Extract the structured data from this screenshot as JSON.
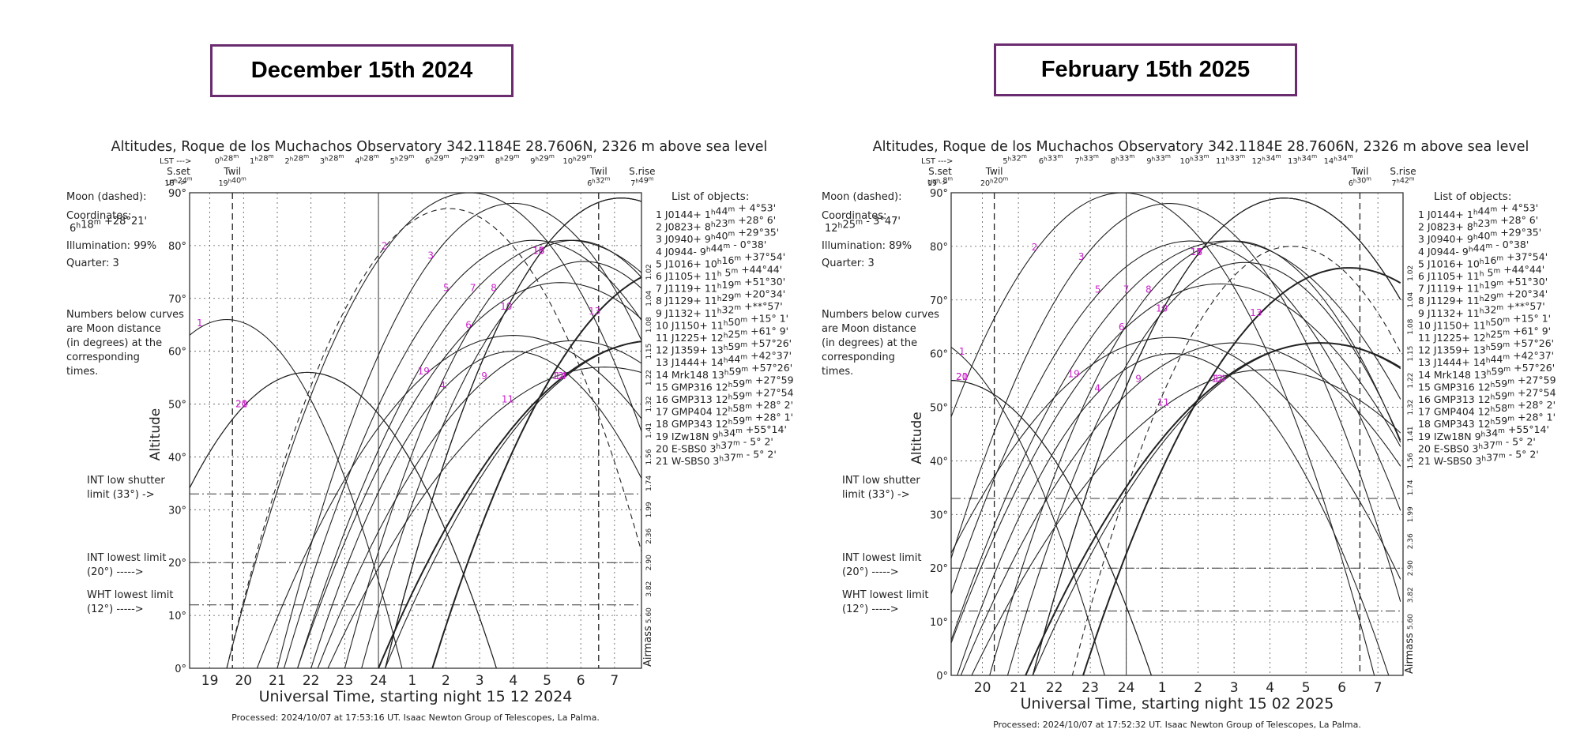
{
  "panels": [
    {
      "date_label": "December 15th 2024",
      "title": "Altitudes, Roque de los Muchachos Observatory 342.1184E  28.7606N, 2326 m above sea level",
      "lst_label": "LST --->",
      "ut_label": "UT ->",
      "lst_ticks": [
        "0h28m",
        "1h28m",
        "2h28m",
        "3h28m",
        "4h28m",
        "5h29m",
        "6h29m",
        "7h29m",
        "8h29m",
        "9h29m",
        "10h29m"
      ],
      "sset": {
        "label": "S.set",
        "time": "18h24m"
      },
      "twil_eve": {
        "label": "Twil",
        "time": "19h40m"
      },
      "twil_morn": {
        "label": "Twil",
        "time": "6h32m"
      },
      "srise": {
        "label": "S.rise",
        "time": "7h49m"
      },
      "moon_dashed": "Moon (dashed):",
      "coordinates_label": "Coordinates:",
      "moon_coords": "6h18m  +28°21'",
      "illumination": "Illumination:  99%",
      "quarter": "Quarter: 3",
      "moon_note": [
        "Numbers below curves",
        "are Moon distance",
        "(in degrees) at the",
        "corresponding",
        "times."
      ],
      "int_shutter": [
        "INT low shutter",
        "limit (33°)  ->"
      ],
      "int_lowest": [
        "INT lowest limit",
        "(20°) ----->"
      ],
      "wht_lowest": [
        "WHT lowest limit",
        "(12°) ----->"
      ],
      "xlabel": "Universal Time, starting night 15 12 2024",
      "ylabel": "Altitude",
      "airmass_label": "Airmass",
      "footer": "Processed: 2024/10/07 at 17:53:16 UT. Isaac  Newton Group of Telescopes, La Palma."
    },
    {
      "date_label": "February 15th 2025",
      "title": "Altitudes, Roque de los Muchachos Observatory 342.1184E  28.7606N, 2326 m above sea level",
      "lst_label": "LST --->",
      "ut_label": "UT ->",
      "lst_ticks": [
        "5h32m",
        "6h33m",
        "7h33m",
        "8h33m",
        "9h33m",
        "10h33m",
        "11h33m",
        "12h34m",
        "13h34m",
        "14h34m"
      ],
      "sset": {
        "label": "S.set",
        "time": "19h 8m"
      },
      "twil_eve": {
        "label": "Twil",
        "time": "20h20m"
      },
      "twil_morn": {
        "label": "Twil",
        "time": "6h30m"
      },
      "srise": {
        "label": "S.rise",
        "time": "7h42m"
      },
      "moon_dashed": "Moon (dashed):",
      "coordinates_label": "Coordinates:",
      "moon_coords": "12h25m  - 3°47'",
      "illumination": "Illumination:  89%",
      "quarter": "Quarter: 3",
      "moon_note": [
        "Numbers below curves",
        "are Moon distance",
        "(in degrees) at the",
        "corresponding",
        "times."
      ],
      "int_shutter": [
        "INT low shutter",
        "limit (33°)  ->"
      ],
      "int_lowest": [
        "INT lowest limit",
        "(20°) ----->"
      ],
      "wht_lowest": [
        "WHT lowest limit",
        "(12°) ----->"
      ],
      "xlabel": "Universal Time, starting night 15 02 2025",
      "ylabel": "Altitude",
      "airmass_label": "Airmass",
      "footer": "Processed: 2024/10/07 at 17:52:32 UT. Isaac  Newton Group of Telescopes, La Palma."
    }
  ],
  "objects_header": "List of objects:",
  "objects": [
    "1 J0144+  1h44m + 4°53'",
    "2 J0823+  8h23m +28° 6'",
    "3 J0940+  9h40m +29°35'",
    "4 J0944-  9h44m - 0°38'",
    "5 J1016+ 10h16m +37°54'",
    "6 J1105+ 11h 5m +44°44'",
    "7 J1119+ 11h19m +51°30'",
    "8 J1129+ 11h29m +20°34'",
    "9 J1132+ 11h32m +**°57'",
    "10 J1150+ 11h50m +15° 1'",
    "11 J1225+ 12h25m +61° 9'",
    "12 J1359+ 13h59m +57°26'",
    "13 J1444+ 14h44m +42°37'",
    "14 Mrk148 13h59m +57°26'",
    "15 GMP316 12h59m +27°59",
    "16 GMP313 12h59m +27°54",
    "17 GMP404 12h58m +28° 2'",
    "18 GMP343 12h59m +28° 1'",
    "19 IZw18N  9h34m +55°14'",
    "20 E-SBS0  3h37m - 5° 2'",
    "21 W-SBS0  3h37m - 5° 2'"
  ],
  "y_ticks": [
    "0°",
    "10°",
    "20°",
    "30°",
    "40°",
    "50°",
    "60°",
    "70°",
    "80°",
    "90°"
  ],
  "airmass_ticks": [
    "5.60",
    "3.82",
    "2.90",
    "2.36",
    "1.99",
    "1.74",
    "1.56",
    "1.41",
    "1.32",
    "1.22",
    "1.15",
    "1.08",
    "1.04",
    "1.02"
  ],
  "colors": {
    "curve": "#222222",
    "moon_dist": "#2222cc",
    "obj_num": "#cc22cc",
    "date_border": "#6b2c6f"
  },
  "chart_data": [
    {
      "type": "line",
      "title": "Altitudes, Roque de los Muchachos Observatory 342.1184E  28.7606N, 2326 m above sea level",
      "xlabel": "Universal Time, starting night 15 12 2024",
      "ylabel": "Altitude",
      "x_ticks": [
        "19",
        "20",
        "21",
        "22",
        "23",
        "24",
        "1",
        "2",
        "3",
        "4",
        "5",
        "6",
        "7"
      ],
      "xlim": [
        18.4,
        31.8
      ],
      "ylim": [
        0,
        90
      ],
      "y_unit": "deg",
      "limits": [
        {
          "name": "INT low shutter",
          "value": 33
        },
        {
          "name": "INT lowest",
          "value": 20
        },
        {
          "name": "WHT lowest",
          "value": 12
        }
      ],
      "markers": {
        "sset": 18.4,
        "twil_eve": 19.67,
        "twil_morn": 30.53,
        "srise": 31.82
      },
      "moon": {
        "name": "Moon",
        "rise": 19.5,
        "peak_time": 26.1,
        "peak_alt": 87
      },
      "series": [
        {
          "name": "1",
          "peak_time": 19.5,
          "peak_alt": 66,
          "hw": 5.2
        },
        {
          "name": "2",
          "peak_time": 26.7,
          "peak_alt": 90,
          "hw": 7.2
        },
        {
          "name": "3",
          "peak_time": 28.0,
          "peak_alt": 88,
          "hw": 7.0
        },
        {
          "name": "4",
          "peak_time": 28.0,
          "peak_alt": 60,
          "hw": 6.0
        },
        {
          "name": "5",
          "peak_time": 28.6,
          "peak_alt": 81,
          "hw": 7.4
        },
        {
          "name": "6",
          "peak_time": 29.4,
          "peak_alt": 73,
          "hw": 7.8
        },
        {
          "name": "7",
          "peak_time": 29.6,
          "peak_alt": 81,
          "hw": 8.0
        },
        {
          "name": "8",
          "peak_time": 29.8,
          "peak_alt": 81,
          "hw": 6.8
        },
        {
          "name": "9",
          "peak_time": 29.8,
          "peak_alt": 62,
          "hw": 7.6
        },
        {
          "name": "10",
          "peak_time": 30.1,
          "peak_alt": 77,
          "hw": 6.6
        },
        {
          "name": "11",
          "peak_time": 30.7,
          "peak_alt": 57,
          "hw": 8.2
        },
        {
          "name": "12",
          "peak_time": 32.2,
          "peak_alt": 62,
          "hw": 8.2
        },
        {
          "name": "13",
          "peak_time": 33.0,
          "peak_alt": 76,
          "hw": 7.4
        },
        {
          "name": "14",
          "peak_time": 32.2,
          "peak_alt": 62,
          "hw": 8.0
        },
        {
          "name": "15",
          "peak_time": 31.2,
          "peak_alt": 89,
          "hw": 7.0
        },
        {
          "name": "16",
          "peak_time": 31.2,
          "peak_alt": 89,
          "hw": 7.0
        },
        {
          "name": "17",
          "peak_time": 31.2,
          "peak_alt": 89,
          "hw": 7.0
        },
        {
          "name": "18",
          "peak_time": 31.2,
          "peak_alt": 89,
          "hw": 7.0
        },
        {
          "name": "19",
          "peak_time": 28.0,
          "peak_alt": 63,
          "hw": 7.6
        },
        {
          "name": "20",
          "peak_time": 21.9,
          "peak_alt": 56,
          "hw": 5.6
        },
        {
          "name": "21",
          "peak_time": 21.9,
          "peak_alt": 56,
          "hw": 5.6
        }
      ]
    },
    {
      "type": "line",
      "title": "Altitudes, Roque de los Muchachos Observatory 342.1184E  28.7606N, 2326 m above sea level",
      "xlabel": "Universal Time, starting night 15 02 2025",
      "ylabel": "Altitude",
      "x_ticks": [
        "20",
        "21",
        "22",
        "23",
        "24",
        "1",
        "2",
        "3",
        "4",
        "5",
        "6",
        "7"
      ],
      "xlim": [
        19.13,
        31.7
      ],
      "ylim": [
        0,
        90
      ],
      "y_unit": "deg",
      "limits": [
        {
          "name": "INT low shutter",
          "value": 33
        },
        {
          "name": "INT lowest",
          "value": 20
        },
        {
          "name": "WHT lowest",
          "value": 12
        }
      ],
      "markers": {
        "sset": 19.13,
        "twil_eve": 20.33,
        "twil_morn": 30.5,
        "srise": 31.7
      },
      "moon": {
        "name": "Moon",
        "rise": 22.5,
        "peak_time": 28.6,
        "peak_alt": 80
      },
      "series": [
        {
          "name": "1",
          "peak_time": 18.0,
          "peak_alt": 64,
          "hw": 5.4
        },
        {
          "name": "2",
          "peak_time": 23.9,
          "peak_alt": 90,
          "hw": 7.0
        },
        {
          "name": "3",
          "peak_time": 25.2,
          "peak_alt": 88,
          "hw": 7.0
        },
        {
          "name": "4",
          "peak_time": 25.3,
          "peak_alt": 60,
          "hw": 6.0
        },
        {
          "name": "5",
          "peak_time": 25.8,
          "peak_alt": 81,
          "hw": 7.4
        },
        {
          "name": "6",
          "peak_time": 26.6,
          "peak_alt": 73,
          "hw": 7.8
        },
        {
          "name": "7",
          "peak_time": 26.8,
          "peak_alt": 81,
          "hw": 8.0
        },
        {
          "name": "8",
          "peak_time": 27.0,
          "peak_alt": 81,
          "hw": 6.8
        },
        {
          "name": "9",
          "peak_time": 27.0,
          "peak_alt": 62,
          "hw": 7.6
        },
        {
          "name": "10",
          "peak_time": 27.3,
          "peak_alt": 77,
          "hw": 6.6
        },
        {
          "name": "11",
          "peak_time": 27.9,
          "peak_alt": 57,
          "hw": 8.2
        },
        {
          "name": "12",
          "peak_time": 29.4,
          "peak_alt": 62,
          "hw": 8.2
        },
        {
          "name": "13",
          "peak_time": 30.2,
          "peak_alt": 76,
          "hw": 7.4
        },
        {
          "name": "14",
          "peak_time": 29.4,
          "peak_alt": 62,
          "hw": 8.0
        },
        {
          "name": "15",
          "peak_time": 28.4,
          "peak_alt": 89,
          "hw": 7.0
        },
        {
          "name": "16",
          "peak_time": 28.4,
          "peak_alt": 89,
          "hw": 7.0
        },
        {
          "name": "17",
          "peak_time": 28.4,
          "peak_alt": 89,
          "hw": 7.0
        },
        {
          "name": "18",
          "peak_time": 28.4,
          "peak_alt": 89,
          "hw": 7.0
        },
        {
          "name": "19",
          "peak_time": 25.2,
          "peak_alt": 63,
          "hw": 7.6
        },
        {
          "name": "20",
          "peak_time": 19.1,
          "peak_alt": 55,
          "hw": 5.6
        },
        {
          "name": "21",
          "peak_time": 19.1,
          "peak_alt": 55,
          "hw": 5.6
        }
      ]
    }
  ]
}
